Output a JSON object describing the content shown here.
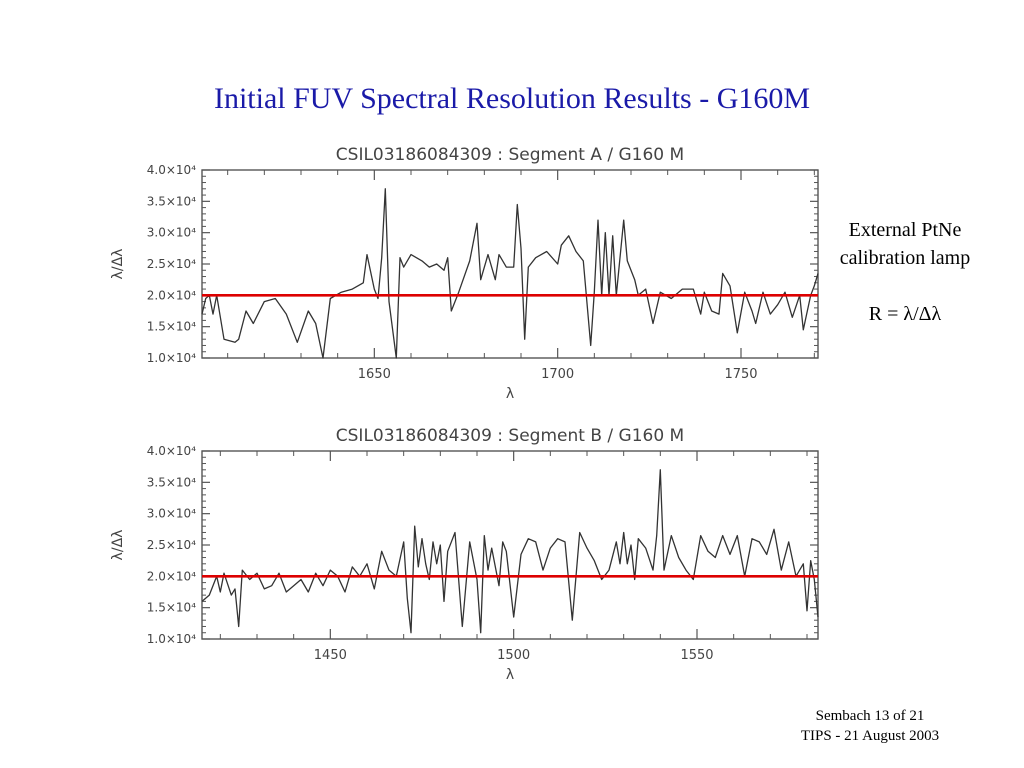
{
  "slide": {
    "title": "Initial FUV Spectral Resolution Results - G160M",
    "side_note_line1": "External PtNe",
    "side_note_line2": "calibration lamp",
    "formula": "R = λ/Δλ",
    "footer_line1": "Sembach 13 of 21",
    "footer_line2": "TIPS - 21 August 2003"
  },
  "colors": {
    "title": "#1a1aa8",
    "data_line": "#333333",
    "reference_line": "#dd0000"
  },
  "chart_data": [
    {
      "type": "line",
      "title": "CSIL03186084309 : Segment A / G160 M",
      "xlabel": "λ",
      "ylabel": "λ/Δλ",
      "xlim": [
        1603,
        1771
      ],
      "ylim": [
        10000,
        40000
      ],
      "x_ticks": [
        1650,
        1700,
        1750
      ],
      "x_tick_labels": [
        "1650",
        "1700",
        "1750"
      ],
      "y_ticks": [
        10000,
        15000,
        20000,
        25000,
        30000,
        35000,
        40000
      ],
      "y_tick_labels": [
        "1.0×10⁴",
        "1.5×10⁴",
        "2.0×10⁴",
        "2.5×10⁴",
        "3.0×10⁴",
        "3.5×10⁴",
        "4.0×10⁴"
      ],
      "reference_value": 20000,
      "series": [
        {
          "x": [
            1603,
            1604,
            1605,
            1606,
            1607,
            1609,
            1612,
            1613,
            1615,
            1617,
            1620,
            1623,
            1626,
            1629,
            1632,
            1634,
            1636,
            1638,
            1641,
            1644,
            1647,
            1648,
            1650,
            1651,
            1652,
            1653,
            1654,
            1656,
            1657,
            1658,
            1660,
            1663,
            1665,
            1667,
            1669,
            1670,
            1671,
            1673,
            1676,
            1678,
            1679,
            1681,
            1683,
            1684,
            1686,
            1688,
            1689,
            1690,
            1691,
            1692,
            1694,
            1697,
            1700,
            1701,
            1703,
            1705,
            1707,
            1709,
            1710,
            1711,
            1712,
            1713,
            1714,
            1715,
            1716,
            1718,
            1719,
            1721,
            1722,
            1724,
            1726,
            1728,
            1731,
            1734,
            1737,
            1739,
            1740,
            1742,
            1744,
            1745,
            1747,
            1749,
            1751,
            1753,
            1754,
            1756,
            1758,
            1760,
            1762,
            1764,
            1766,
            1767,
            1769,
            1770,
            1771
          ],
          "y": [
            17000,
            19500,
            20000,
            17000,
            20000,
            13000,
            12500,
            13000,
            17500,
            15500,
            19000,
            19500,
            17000,
            12500,
            17500,
            15500,
            10000,
            19500,
            20500,
            21000,
            22000,
            26500,
            21000,
            19500,
            26000,
            37000,
            19000,
            10000,
            26000,
            24500,
            26500,
            25500,
            24500,
            25000,
            24000,
            26000,
            17500,
            20500,
            25500,
            31500,
            22500,
            26500,
            22500,
            26500,
            24500,
            24500,
            34500,
            27500,
            13000,
            24500,
            26000,
            27000,
            25000,
            28000,
            29500,
            27000,
            25500,
            12000,
            20500,
            32000,
            20000,
            30000,
            20000,
            29500,
            20000,
            32000,
            25500,
            22500,
            20000,
            21000,
            15500,
            20500,
            19500,
            21000,
            21000,
            17000,
            20500,
            17500,
            17000,
            23500,
            21500,
            14000,
            20500,
            17500,
            15500,
            20500,
            17000,
            18500,
            20500,
            16500,
            20000,
            14500,
            20000,
            21500,
            23500
          ]
        }
      ]
    },
    {
      "type": "line",
      "title": "CSIL03186084309 : Segment B / G160 M",
      "xlabel": "λ",
      "ylabel": "λ/Δλ",
      "xlim": [
        1415,
        1583
      ],
      "ylim": [
        10000,
        40000
      ],
      "x_ticks": [
        1450,
        1500,
        1550
      ],
      "x_tick_labels": [
        "1450",
        "1500",
        "1550"
      ],
      "y_ticks": [
        10000,
        15000,
        20000,
        25000,
        30000,
        35000,
        40000
      ],
      "y_tick_labels": [
        "1.0×10⁴",
        "1.5×10⁴",
        "2.0×10⁴",
        "2.5×10⁴",
        "3.0×10⁴",
        "3.5×10⁴",
        "4.0×10⁴"
      ],
      "reference_value": 20000,
      "series": [
        {
          "x": [
            1415,
            1417,
            1419,
            1420,
            1421,
            1423,
            1424,
            1425,
            1426,
            1428,
            1430,
            1432,
            1434,
            1436,
            1438,
            1440,
            1442,
            1444,
            1446,
            1448,
            1450,
            1452,
            1454,
            1456,
            1458,
            1460,
            1462,
            1464,
            1466,
            1468,
            1470,
            1471,
            1472,
            1473,
            1474,
            1475,
            1476,
            1477,
            1478,
            1479,
            1480,
            1481,
            1482,
            1484,
            1486,
            1488,
            1490,
            1491,
            1492,
            1493,
            1494,
            1496,
            1497,
            1498,
            1500,
            1502,
            1504,
            1506,
            1508,
            1510,
            1512,
            1514,
            1516,
            1518,
            1520,
            1522,
            1524,
            1526,
            1528,
            1529,
            1530,
            1531,
            1532,
            1533,
            1534,
            1536,
            1538,
            1539,
            1540,
            1541,
            1543,
            1545,
            1547,
            1549,
            1551,
            1553,
            1555,
            1557,
            1559,
            1561,
            1563,
            1565,
            1567,
            1569,
            1571,
            1573,
            1575,
            1577,
            1579,
            1580,
            1581,
            1582,
            1583
          ],
          "y": [
            16000,
            17000,
            20000,
            17500,
            20500,
            17000,
            18000,
            12000,
            21000,
            19500,
            20500,
            18000,
            18500,
            20500,
            17500,
            18500,
            19500,
            17500,
            20500,
            18500,
            21000,
            20000,
            17500,
            21500,
            20000,
            22000,
            18000,
            24000,
            21000,
            20000,
            25500,
            16500,
            11000,
            28000,
            21500,
            26000,
            22000,
            19500,
            25500,
            22000,
            25000,
            16000,
            24000,
            27000,
            12000,
            25500,
            19500,
            11000,
            26500,
            21000,
            24500,
            18500,
            25500,
            24000,
            13500,
            23500,
            26000,
            25500,
            21000,
            24500,
            26000,
            25500,
            13000,
            27000,
            24500,
            22500,
            19500,
            21000,
            25500,
            22000,
            27000,
            22000,
            25000,
            19500,
            26000,
            24500,
            21000,
            26500,
            37000,
            21000,
            26500,
            23000,
            21000,
            19500,
            26500,
            24000,
            23000,
            26500,
            23500,
            26500,
            20000,
            26000,
            25500,
            23500,
            27500,
            21000,
            25500,
            20000,
            22000,
            14500,
            22500,
            19500,
            13500
          ]
        }
      ]
    }
  ]
}
